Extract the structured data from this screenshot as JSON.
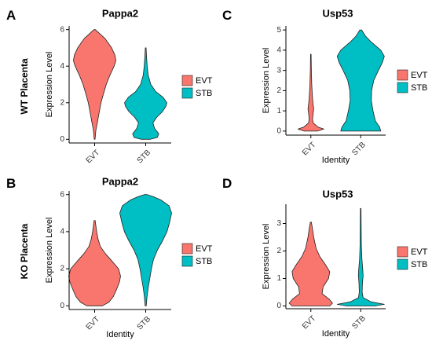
{
  "row_labels": [
    "WT Placenta",
    "KO Placenta"
  ],
  "colors": {
    "EVT": "#F8766D",
    "STB": "#00BFC4"
  },
  "chart_data": [
    {
      "panel": "A",
      "type": "violin",
      "title": "Pappa2",
      "ylabel": "Expression Level",
      "xlabel": "",
      "categories": [
        "EVT",
        "STB"
      ],
      "ylim": [
        -0.2,
        6.2
      ],
      "yticks": [
        0,
        2,
        4,
        6
      ],
      "legend": [
        "EVT",
        "STB"
      ],
      "legend_position": "right",
      "grid": false,
      "series": [
        {
          "name": "EVT",
          "min": 0.0,
          "max": 6.0,
          "density": [
            [
              0.0,
              0.02
            ],
            [
              0.5,
              0.06
            ],
            [
              1.0,
              0.14
            ],
            [
              1.5,
              0.22
            ],
            [
              2.0,
              0.3
            ],
            [
              2.5,
              0.42
            ],
            [
              3.0,
              0.55
            ],
            [
              3.5,
              0.72
            ],
            [
              4.0,
              0.92
            ],
            [
              4.3,
              1.0
            ],
            [
              4.6,
              0.96
            ],
            [
              5.0,
              0.8
            ],
            [
              5.5,
              0.5
            ],
            [
              5.8,
              0.22
            ],
            [
              6.0,
              0.03
            ]
          ]
        },
        {
          "name": "STB",
          "min": 0.0,
          "max": 5.0,
          "density": [
            [
              0.0,
              0.22
            ],
            [
              0.1,
              0.55
            ],
            [
              0.3,
              0.62
            ],
            [
              0.6,
              0.42
            ],
            [
              0.9,
              0.34
            ],
            [
              1.2,
              0.52
            ],
            [
              1.5,
              0.78
            ],
            [
              1.8,
              0.95
            ],
            [
              2.0,
              1.0
            ],
            [
              2.3,
              0.82
            ],
            [
              2.6,
              0.48
            ],
            [
              3.0,
              0.24
            ],
            [
              3.5,
              0.12
            ],
            [
              4.0,
              0.07
            ],
            [
              4.5,
              0.04
            ],
            [
              5.0,
              0.02
            ]
          ]
        }
      ]
    },
    {
      "panel": "C",
      "type": "violin",
      "title": "Usp53",
      "ylabel": "Expression Level",
      "xlabel": "Identity",
      "categories": [
        "EVT",
        "STB"
      ],
      "ylim": [
        -0.2,
        5.2
      ],
      "yticks": [
        0,
        1,
        2,
        3,
        4,
        5
      ],
      "legend": [
        "EVT",
        "STB"
      ],
      "legend_position": "right",
      "grid": false,
      "series": [
        {
          "name": "EVT",
          "min": 0.0,
          "max": 3.8,
          "density": [
            [
              0.0,
              0.28
            ],
            [
              0.1,
              0.55
            ],
            [
              0.2,
              0.3
            ],
            [
              0.4,
              0.1
            ],
            [
              0.6,
              0.07
            ],
            [
              0.9,
              0.1
            ],
            [
              1.1,
              0.12
            ],
            [
              1.4,
              0.09
            ],
            [
              1.8,
              0.06
            ],
            [
              2.3,
              0.04
            ],
            [
              3.0,
              0.02
            ],
            [
              3.8,
              0.01
            ]
          ]
        },
        {
          "name": "STB",
          "min": 0.0,
          "max": 5.0,
          "density": [
            [
              0.0,
              0.85
            ],
            [
              0.2,
              0.8
            ],
            [
              0.5,
              0.62
            ],
            [
              1.0,
              0.52
            ],
            [
              1.5,
              0.45
            ],
            [
              2.0,
              0.46
            ],
            [
              2.5,
              0.55
            ],
            [
              3.0,
              0.75
            ],
            [
              3.4,
              0.92
            ],
            [
              3.7,
              1.0
            ],
            [
              4.0,
              0.85
            ],
            [
              4.4,
              0.45
            ],
            [
              4.7,
              0.2
            ],
            [
              5.0,
              0.04
            ]
          ]
        }
      ]
    },
    {
      "panel": "B",
      "type": "violin",
      "title": "Pappa2",
      "ylabel": "Expression Level",
      "xlabel": "Identity",
      "categories": [
        "EVT",
        "STB"
      ],
      "ylim": [
        -0.2,
        6.2
      ],
      "yticks": [
        0,
        2,
        4,
        6
      ],
      "legend": [
        "EVT",
        "STB"
      ],
      "legend_position": "right",
      "grid": false,
      "series": [
        {
          "name": "EVT",
          "min": 0.0,
          "max": 4.6,
          "density": [
            [
              0.0,
              0.3
            ],
            [
              0.2,
              0.55
            ],
            [
              0.5,
              0.72
            ],
            [
              0.9,
              0.85
            ],
            [
              1.3,
              0.96
            ],
            [
              1.6,
              1.0
            ],
            [
              2.0,
              0.92
            ],
            [
              2.4,
              0.68
            ],
            [
              2.8,
              0.42
            ],
            [
              3.2,
              0.22
            ],
            [
              3.6,
              0.13
            ],
            [
              4.0,
              0.08
            ],
            [
              4.4,
              0.04
            ],
            [
              4.6,
              0.02
            ]
          ]
        },
        {
          "name": "STB",
          "min": 0.0,
          "max": 6.0,
          "density": [
            [
              0.0,
              0.02
            ],
            [
              0.5,
              0.05
            ],
            [
              1.0,
              0.1
            ],
            [
              1.5,
              0.16
            ],
            [
              2.0,
              0.22
            ],
            [
              2.5,
              0.3
            ],
            [
              3.0,
              0.45
            ],
            [
              3.5,
              0.65
            ],
            [
              4.0,
              0.82
            ],
            [
              4.5,
              0.92
            ],
            [
              5.0,
              1.0
            ],
            [
              5.4,
              0.9
            ],
            [
              5.7,
              0.6
            ],
            [
              5.9,
              0.28
            ],
            [
              6.0,
              0.05
            ]
          ]
        }
      ]
    },
    {
      "panel": "D",
      "type": "violin",
      "title": "Usp53",
      "ylabel": "Expression Level",
      "xlabel": "Identity",
      "categories": [
        "EVT",
        "STB"
      ],
      "ylim": [
        -0.1,
        3.7
      ],
      "yticks": [
        0,
        1,
        2,
        3
      ],
      "legend": [
        "EVT",
        "STB"
      ],
      "legend_position": "right",
      "grid": false,
      "series": [
        {
          "name": "EVT",
          "min": 0.0,
          "max": 3.05,
          "density": [
            [
              0.0,
              0.8
            ],
            [
              0.1,
              0.92
            ],
            [
              0.25,
              0.78
            ],
            [
              0.45,
              0.48
            ],
            [
              0.7,
              0.52
            ],
            [
              1.0,
              0.75
            ],
            [
              1.25,
              0.8
            ],
            [
              1.5,
              0.62
            ],
            [
              1.8,
              0.38
            ],
            [
              2.1,
              0.22
            ],
            [
              2.5,
              0.12
            ],
            [
              2.8,
              0.07
            ],
            [
              3.05,
              0.02
            ]
          ]
        },
        {
          "name": "STB",
          "min": 0.0,
          "max": 3.55,
          "density": [
            [
              0.0,
              0.6
            ],
            [
              0.06,
              1.0
            ],
            [
              0.15,
              0.45
            ],
            [
              0.3,
              0.1
            ],
            [
              0.5,
              0.06
            ],
            [
              0.8,
              0.07
            ],
            [
              1.1,
              0.1
            ],
            [
              1.3,
              0.09
            ],
            [
              1.7,
              0.05
            ],
            [
              2.2,
              0.03
            ],
            [
              2.8,
              0.02
            ],
            [
              3.55,
              0.01
            ]
          ]
        }
      ]
    }
  ]
}
